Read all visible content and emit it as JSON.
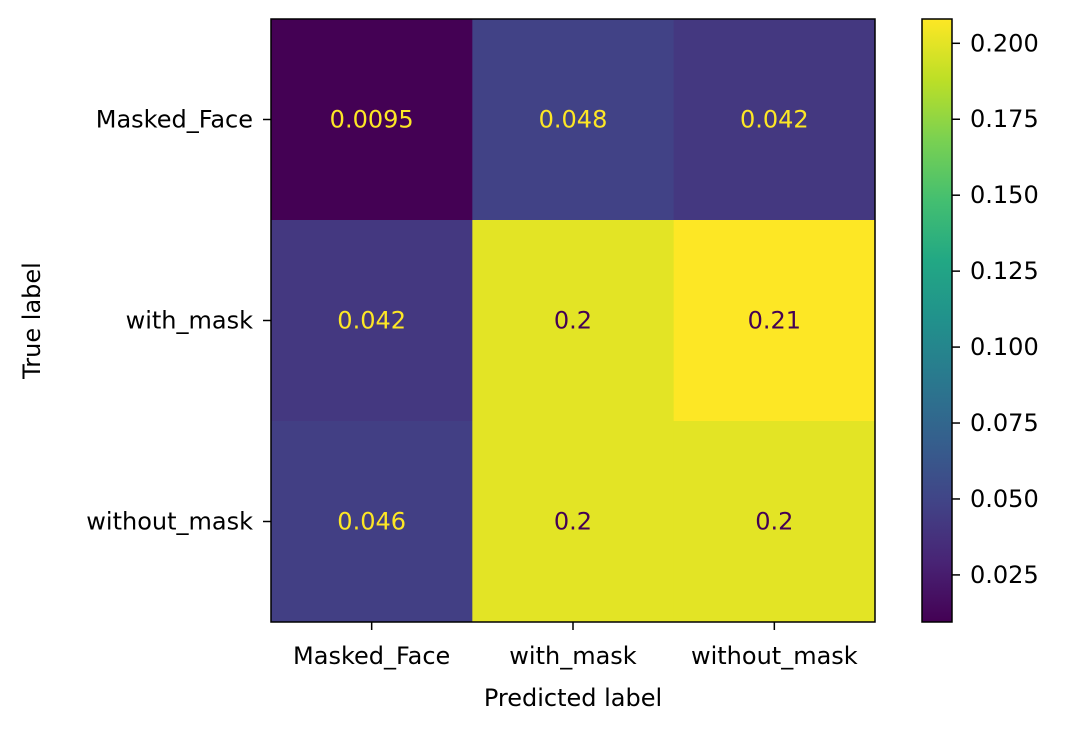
{
  "chart_data": {
    "type": "heatmap",
    "title": "",
    "xlabel": "Predicted label",
    "ylabel": "True label",
    "x_categories": [
      "Masked_Face",
      "with_mask",
      "without_mask"
    ],
    "y_categories": [
      "Masked_Face",
      "with_mask",
      "without_mask"
    ],
    "values": [
      [
        0.0095,
        0.048,
        0.042
      ],
      [
        0.042,
        0.2,
        0.21
      ],
      [
        0.046,
        0.2,
        0.2
      ]
    ],
    "value_labels": [
      [
        "0.0095",
        "0.048",
        "0.042"
      ],
      [
        "0.042",
        "0.2",
        "0.21"
      ],
      [
        "0.046",
        "0.2",
        "0.2"
      ]
    ],
    "colormap": "viridis",
    "colorbar": {
      "range": [
        0.0095,
        0.208
      ],
      "ticks": [
        0.025,
        0.05,
        0.075,
        0.1,
        0.125,
        0.15,
        0.175,
        0.2
      ],
      "tick_labels": [
        "0.025",
        "0.050",
        "0.075",
        "0.100",
        "0.125",
        "0.150",
        "0.175",
        "0.200"
      ]
    },
    "text_colors": {
      "light": "#fde725",
      "dark": "#440154"
    }
  }
}
